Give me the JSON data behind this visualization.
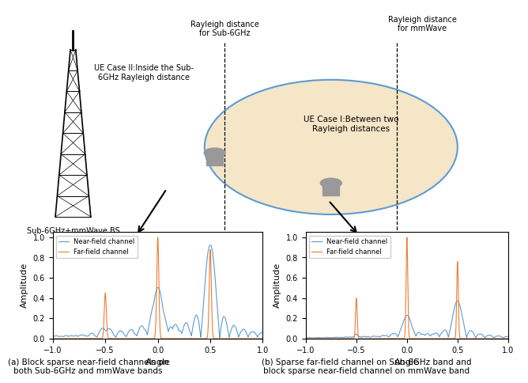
{
  "plot1_caption": "(a) Block sparse near-field channels on\nboth Sub-6GHz and mmWave bands",
  "plot2_caption": "(b) Sparse far-field channel on Sub-6GHz band and\nblock sparse near-field channel on mmWave band",
  "xlabel": "Angle",
  "ylabel": "Amplitude",
  "near_field_color": "#5B9BD5",
  "far_field_color": "#ED7D31",
  "ellipse_facecolor": "#F5E6C8",
  "ellipse_edgecolor": "#5B9BD5",
  "background_color": "#FFFFFF",
  "rayleigh1_label": "Rayleigh distance\nfor Sub-6GHz",
  "rayleigh2_label": "Rayleigh distance\nfor mmWave",
  "case1_label": "UE Case I:Between two\nRayleigh distances",
  "case2_label": "UE Case II:Inside the Sub-\n6GHz Rayleigh distance",
  "bs_label": "Sub-6GHz+mmWave BS",
  "legend1": "Near-field channel",
  "legend2": "Far-field channel"
}
